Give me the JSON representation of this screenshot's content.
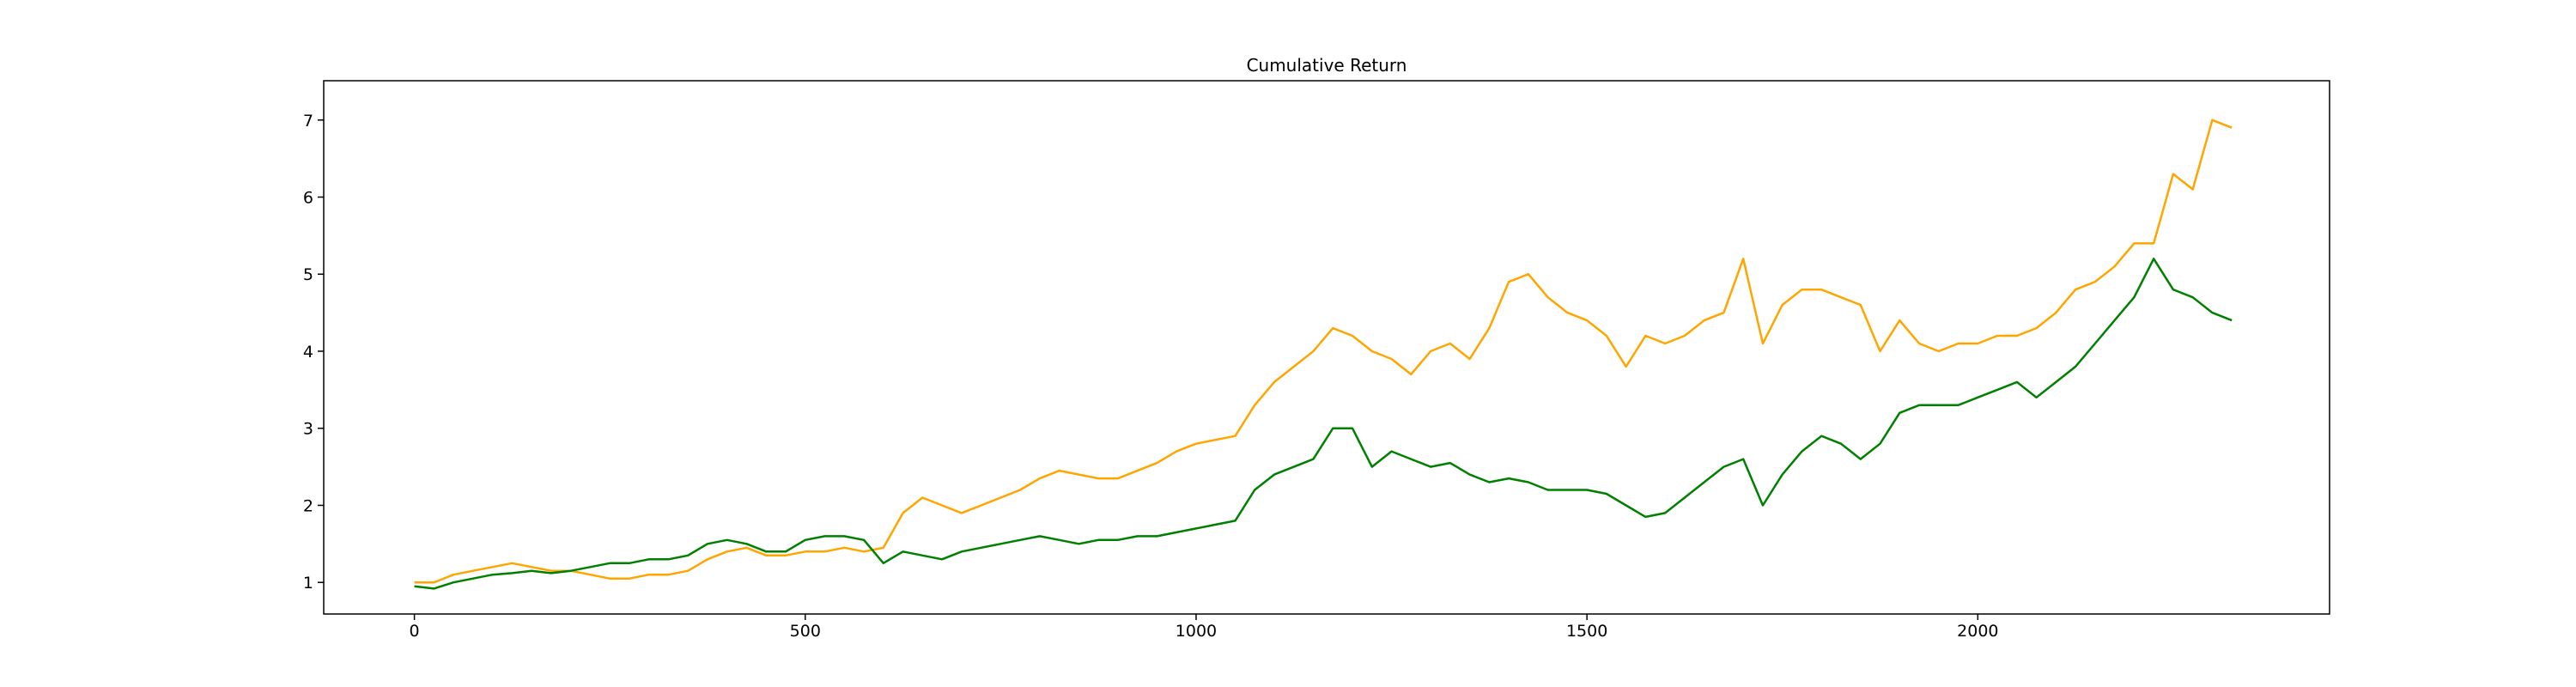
{
  "chart_data": {
    "type": "line",
    "title": "Cumulative Return",
    "x": [
      0,
      25,
      50,
      75,
      100,
      125,
      150,
      175,
      200,
      225,
      250,
      275,
      300,
      325,
      350,
      375,
      400,
      425,
      450,
      475,
      500,
      525,
      550,
      575,
      600,
      625,
      650,
      675,
      700,
      725,
      750,
      775,
      800,
      825,
      850,
      875,
      900,
      925,
      950,
      975,
      1000,
      1025,
      1050,
      1075,
      1100,
      1125,
      1150,
      1175,
      1200,
      1225,
      1250,
      1275,
      1300,
      1325,
      1350,
      1375,
      1400,
      1425,
      1450,
      1475,
      1500,
      1525,
      1550,
      1575,
      1600,
      1625,
      1650,
      1675,
      1700,
      1725,
      1750,
      1775,
      1800,
      1825,
      1850,
      1875,
      1900,
      1925,
      1950,
      1975,
      2000,
      2025,
      2050,
      2075,
      2100,
      2125,
      2150,
      2175,
      2200,
      2225,
      2250,
      2275,
      2300,
      2325
    ],
    "series": [
      {
        "color": "orange",
        "values": [
          1.0,
          1.0,
          1.1,
          1.15,
          1.2,
          1.25,
          1.2,
          1.15,
          1.15,
          1.1,
          1.05,
          1.05,
          1.1,
          1.1,
          1.15,
          1.3,
          1.4,
          1.45,
          1.35,
          1.35,
          1.4,
          1.4,
          1.45,
          1.4,
          1.45,
          1.9,
          2.1,
          2.0,
          1.9,
          2.0,
          2.1,
          2.2,
          2.35,
          2.45,
          2.4,
          2.35,
          2.35,
          2.45,
          2.55,
          2.7,
          2.8,
          2.85,
          2.9,
          3.3,
          3.6,
          3.8,
          4.0,
          4.3,
          4.2,
          4.0,
          3.9,
          3.7,
          4.0,
          4.1,
          3.9,
          4.3,
          4.9,
          5.0,
          4.7,
          4.5,
          4.4,
          4.2,
          3.8,
          4.2,
          4.1,
          4.2,
          4.4,
          4.5,
          5.2,
          4.1,
          4.6,
          4.8,
          4.8,
          4.7,
          4.6,
          4.0,
          4.4,
          4.1,
          4.0,
          4.1,
          4.1,
          4.2,
          4.2,
          4.3,
          4.5,
          4.8,
          4.9,
          5.1,
          5.4,
          5.4,
          6.3,
          6.1,
          7.0,
          6.9
        ]
      },
      {
        "color": "green",
        "values": [
          0.95,
          0.92,
          1.0,
          1.05,
          1.1,
          1.12,
          1.15,
          1.12,
          1.15,
          1.2,
          1.25,
          1.25,
          1.3,
          1.3,
          1.35,
          1.5,
          1.55,
          1.5,
          1.4,
          1.4,
          1.55,
          1.6,
          1.6,
          1.55,
          1.25,
          1.4,
          1.35,
          1.3,
          1.4,
          1.45,
          1.5,
          1.55,
          1.6,
          1.55,
          1.5,
          1.55,
          1.55,
          1.6,
          1.6,
          1.65,
          1.7,
          1.75,
          1.8,
          2.2,
          2.4,
          2.5,
          2.6,
          3.0,
          3.0,
          2.5,
          2.7,
          2.6,
          2.5,
          2.55,
          2.4,
          2.3,
          2.35,
          2.3,
          2.2,
          2.2,
          2.2,
          2.15,
          2.0,
          1.85,
          1.9,
          2.1,
          2.3,
          2.5,
          2.6,
          2.0,
          2.4,
          2.7,
          2.9,
          2.8,
          2.6,
          2.8,
          3.2,
          3.3,
          3.3,
          3.3,
          3.4,
          3.5,
          3.6,
          3.4,
          3.6,
          3.8,
          4.1,
          4.4,
          4.7,
          5.2,
          4.8,
          4.7,
          4.5,
          4.4
        ]
      }
    ],
    "xlim": [
      -116,
      2450
    ],
    "ylim": [
      0.59,
      7.51
    ],
    "xticks": [
      0,
      500,
      1000,
      1500,
      2000
    ],
    "yticks": [
      1,
      2,
      3,
      4,
      5,
      6,
      7
    ]
  }
}
